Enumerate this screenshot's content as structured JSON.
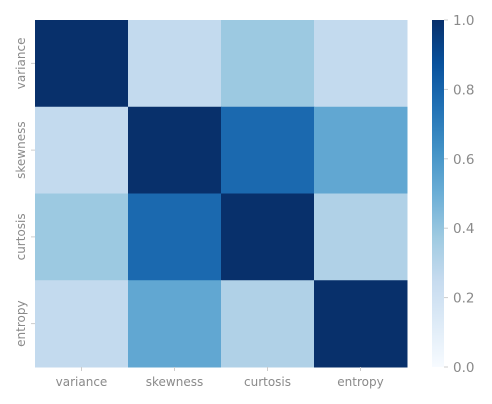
{
  "chart_data": {
    "type": "heatmap",
    "title": "",
    "xlabel": "",
    "ylabel": "",
    "x_labels": [
      "variance",
      "skewness",
      "curtosis",
      "entropy"
    ],
    "y_labels": [
      "variance",
      "skewness",
      "curtosis",
      "entropy"
    ],
    "values": [
      [
        1.0,
        0.26,
        0.38,
        0.26
      ],
      [
        0.26,
        1.0,
        0.78,
        0.53
      ],
      [
        0.38,
        0.78,
        1.0,
        0.32
      ],
      [
        0.26,
        0.53,
        0.32,
        1.0
      ]
    ],
    "colormap": "Blues",
    "colorbar": {
      "range": [
        0.0,
        1.0
      ],
      "ticks": [
        "0.0",
        "0.2",
        "0.4",
        "0.6",
        "0.8",
        "1.0"
      ]
    },
    "grid": false
  }
}
